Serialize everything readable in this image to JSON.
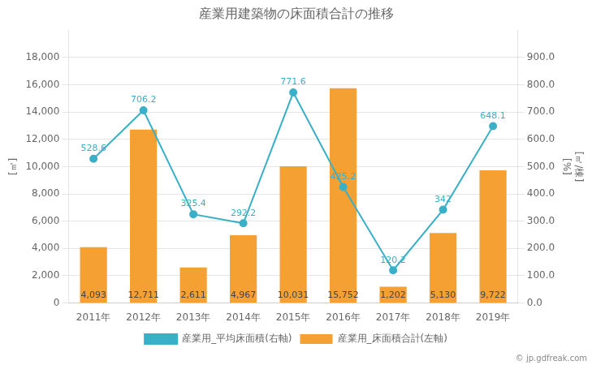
{
  "chart_data": {
    "type": "bar",
    "title": "産業用建築物の床面積合計の推移",
    "categories": [
      "2011年",
      "2012年",
      "2013年",
      "2014年",
      "2015年",
      "2016年",
      "2017年",
      "2018年",
      "2019年"
    ],
    "series": [
      {
        "name": "産業用_床面積合計(左軸)",
        "type": "bar",
        "color": "#f5a033",
        "values": [
          4093,
          12711,
          2611,
          4967,
          10031,
          15752,
          1202,
          5130,
          9722
        ],
        "value_labels": [
          "4,093",
          "12,711",
          "2,611",
          "4,967",
          "10,031",
          "15,752",
          "1,202",
          "5,130",
          "9,722"
        ]
      },
      {
        "name": "産業用_平均床面積(右軸)",
        "type": "line",
        "axis": "y2",
        "color": "#3ab0c8",
        "marker": "circle",
        "values": [
          528.6,
          706.2,
          325.4,
          292.2,
          771.6,
          425.2,
          120.2,
          342,
          648.1
        ]
      }
    ],
    "data_labels": true,
    "ylabel": "[㎡]",
    "y2label": [
      "[㎡/棟]",
      "[%]"
    ],
    "ylim": [
      0,
      20000
    ],
    "yticks": [
      0,
      {
        "value": 2000,
        "label": "2,000"
      },
      {
        "value": 4000,
        "label": "4,000"
      },
      {
        "value": 6000,
        "label": "6,000"
      },
      {
        "value": 8000,
        "label": "8,000"
      },
      {
        "value": 10000,
        "label": "10,000"
      },
      {
        "value": 12000,
        "label": "12,000"
      },
      {
        "value": 14000,
        "label": "14,000"
      },
      {
        "value": 16000,
        "label": "16,000"
      },
      {
        "value": 18000,
        "label": "18,000"
      }
    ],
    "y2lim": [
      0,
      1000
    ],
    "y2ticks": [
      {
        "value": 0,
        "label": "0.0"
      },
      {
        "value": 100,
        "label": "100.0"
      },
      {
        "value": 200,
        "label": "200.0"
      },
      {
        "value": 300,
        "label": "300.0"
      },
      {
        "value": 400,
        "label": "400.0"
      },
      {
        "value": 500,
        "label": "500.0"
      },
      {
        "value": 600,
        "label": "600.0"
      },
      {
        "value": 700,
        "label": "700.0"
      },
      {
        "value": 800,
        "label": "800.0"
      },
      {
        "value": 900,
        "label": "900.0"
      }
    ],
    "grid": true,
    "legend": "bottom",
    "annotations": [
      "© jp.gdfreak.com"
    ]
  }
}
